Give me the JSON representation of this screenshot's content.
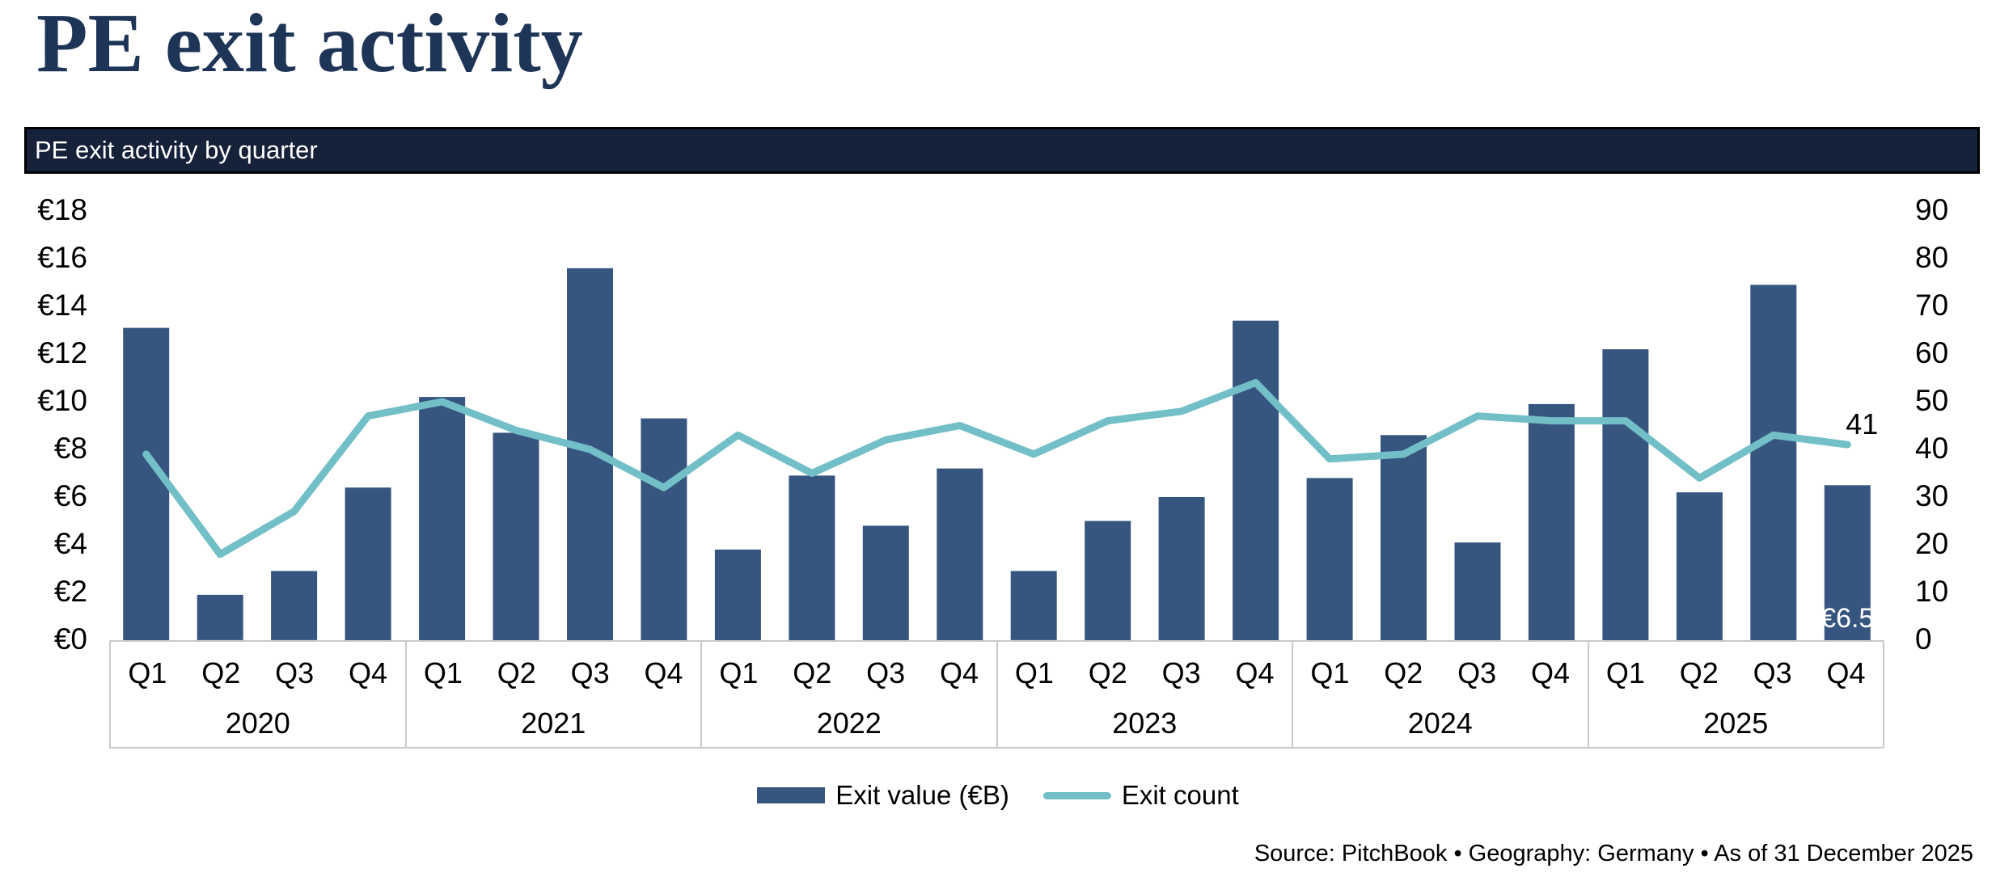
{
  "page": {
    "title": "PE exit activity"
  },
  "panel": {
    "header": "PE exit activity by quarter"
  },
  "theme": {
    "title_color": "#1f3557",
    "header_bg": "#16213a",
    "header_text": "#ffffff",
    "header_border": "#000000",
    "bar_color": "#36567f",
    "line_color": "#73bfc7",
    "axis_text": "#000000",
    "axis_box_border": "#c9c9c9"
  },
  "chart_data": {
    "type": "bar+line",
    "title": "PE exit activity by quarter",
    "years": [
      "2020",
      "2021",
      "2022",
      "2023",
      "2024",
      "2025"
    ],
    "quarters": [
      "Q1",
      "Q2",
      "Q3",
      "Q4"
    ],
    "series": [
      {
        "name": "Exit value (€B)",
        "type": "bar",
        "axis": "left",
        "values": [
          13.1,
          1.9,
          2.9,
          6.4,
          10.2,
          8.7,
          15.6,
          9.3,
          3.8,
          6.9,
          4.8,
          7.2,
          2.9,
          5.0,
          6.0,
          13.4,
          6.8,
          8.6,
          4.1,
          9.9,
          12.2,
          6.2,
          14.9,
          6.5
        ]
      },
      {
        "name": "Exit count",
        "type": "line",
        "axis": "right",
        "values": [
          39,
          18,
          27,
          47,
          50,
          44,
          40,
          32,
          43,
          35,
          42,
          45,
          39,
          46,
          48,
          54,
          38,
          39,
          47,
          46,
          46,
          34,
          43,
          41
        ]
      }
    ],
    "left_axis": {
      "ticks": [
        "€18",
        "€16",
        "€14",
        "€12",
        "€10",
        "€8",
        "€6",
        "€4",
        "€2",
        "€0"
      ],
      "min": 0,
      "max": 18,
      "step": 2
    },
    "right_axis": {
      "ticks": [
        "90",
        "80",
        "70",
        "60",
        "50",
        "40",
        "30",
        "20",
        "10",
        "0"
      ],
      "min": 0,
      "max": 90,
      "step": 10
    },
    "grid": false,
    "legend_position": "bottom",
    "annotations": [
      {
        "text": "41",
        "target": "line",
        "index": 23,
        "color": "#000000"
      },
      {
        "text": "€6.5",
        "target": "bar",
        "index": 23,
        "color": "#ffffff"
      }
    ]
  },
  "footer": {
    "source": "Source: PitchBook • Geography: Germany • As of 31 December 2025"
  }
}
